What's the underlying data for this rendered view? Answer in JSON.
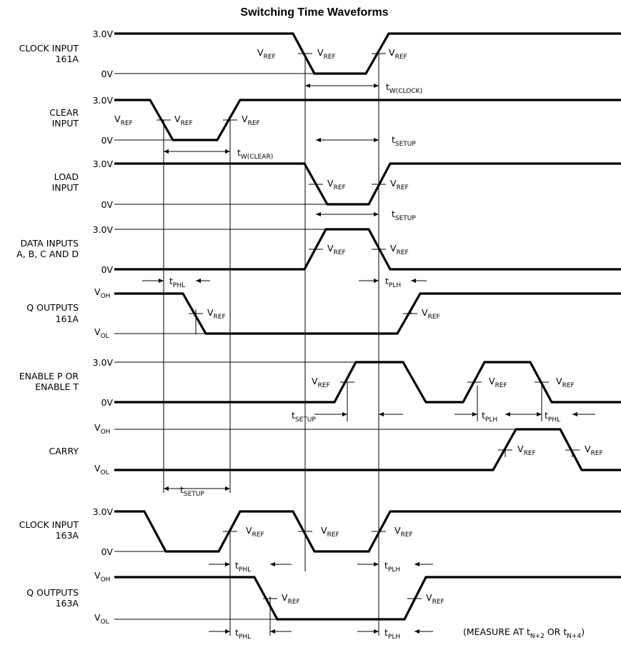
{
  "title": "Switching Time Waveforms",
  "rows": [
    {
      "key": "clk161",
      "name": "CLOCK INPUT",
      "sub": "161A",
      "hi": "3.0V",
      "lo": "0V"
    },
    {
      "key": "clear",
      "name": "CLEAR",
      "sub": "INPUT",
      "hi": "3.0V",
      "lo": "0V"
    },
    {
      "key": "load",
      "name": "LOAD",
      "sub": "INPUT",
      "hi": "3.0V",
      "lo": "0V"
    },
    {
      "key": "data",
      "name": "DATA INPUTS",
      "sub": "A, B, C AND D",
      "hi": "3.0V",
      "lo": "0V"
    },
    {
      "key": "q161",
      "name": "Q OUTPUTS",
      "sub": "161A",
      "hi": "V",
      "hi_sub": "OH",
      "lo": "V",
      "lo_sub": "OL"
    },
    {
      "key": "enable",
      "name": "ENABLE P OR",
      "sub": "ENABLE T",
      "hi": "3.0V",
      "lo": "0V"
    },
    {
      "key": "carry",
      "name": "CARRY",
      "sub": "",
      "hi": "V",
      "hi_sub": "OH",
      "lo": "V",
      "lo_sub": "OL"
    },
    {
      "key": "clk163",
      "name": "CLOCK INPUT",
      "sub": "163A",
      "hi": "3.0V",
      "lo": "0V"
    },
    {
      "key": "q163",
      "name": "Q OUTPUTS",
      "sub": "163A",
      "hi": "V",
      "hi_sub": "OH",
      "lo": "V",
      "lo_sub": "OL"
    }
  ],
  "vref": {
    "main": "V",
    "sub": "REF"
  },
  "timings": {
    "tw_clock": {
      "main": "t",
      "sub": "W(CLOCK)"
    },
    "tw_clear": {
      "main": "t",
      "sub": "W(CLEAR)"
    },
    "tsetup": {
      "main": "t",
      "sub": "SETUP"
    },
    "tphl": {
      "main": "t",
      "sub": "PHL"
    },
    "tplh": {
      "main": "t",
      "sub": "PLH"
    }
  },
  "footnote": {
    "prefix": "(MEASURE AT t",
    "sub1": "N+2",
    "mid": " OR t",
    "sub2": "N+4",
    "suffix": ")"
  }
}
